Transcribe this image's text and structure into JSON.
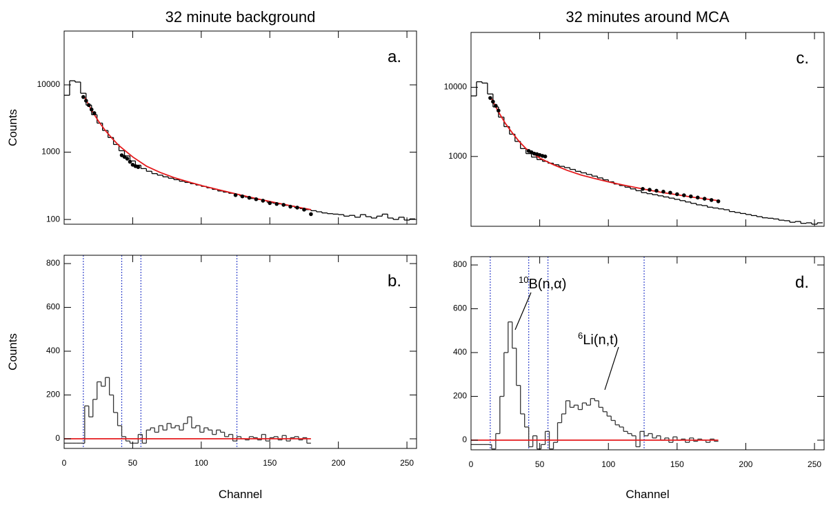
{
  "chart_data": [
    {
      "type": "histogram",
      "title": "32 minute background",
      "ylabel": "Counts",
      "panel_label": "a.",
      "log_y": true,
      "xtick_labels": false,
      "xlim": [
        0,
        257
      ],
      "ylim": [
        85,
        63000
      ],
      "xticks": [
        0,
        50,
        100,
        150,
        200,
        250
      ],
      "yticks": [
        100,
        1000,
        10000
      ],
      "color": "#000000",
      "bins": [
        0,
        4,
        8,
        12,
        16,
        20,
        24,
        28,
        32,
        36,
        40,
        44,
        48,
        52,
        56,
        60,
        64,
        68,
        72,
        76,
        80,
        84,
        88,
        92,
        96,
        100,
        104,
        108,
        112,
        116,
        120,
        124,
        128,
        132,
        136,
        140,
        144,
        148,
        152,
        156,
        160,
        164,
        168,
        172,
        176,
        180,
        184,
        188,
        192,
        196,
        200,
        204,
        208,
        212,
        216,
        220,
        224,
        228,
        232,
        236,
        240,
        244,
        248,
        252,
        256
      ],
      "values": [
        7000,
        11500,
        11000,
        7500,
        5000,
        3600,
        2700,
        2100,
        1650,
        1300,
        1050,
        880,
        740,
        640,
        570,
        520,
        480,
        455,
        430,
        410,
        390,
        370,
        355,
        340,
        325,
        310,
        295,
        280,
        265,
        255,
        245,
        235,
        225,
        215,
        205,
        198,
        190,
        180,
        175,
        170,
        162,
        158,
        150,
        145,
        140,
        135,
        130,
        125,
        122,
        120,
        118,
        112,
        115,
        108,
        118,
        110,
        105,
        112,
        120,
        105,
        100,
        108,
        98,
        102
      ],
      "fit": {
        "color": "#e41a1c",
        "x": [
          15,
          20,
          25,
          30,
          35,
          40,
          50,
          60,
          70,
          80,
          90,
          100,
          110,
          120,
          130,
          140,
          150,
          160,
          170,
          180
        ],
        "values": [
          6500,
          4200,
          2900,
          2100,
          1600,
          1250,
          850,
          620,
          500,
          420,
          365,
          320,
          285,
          255,
          228,
          205,
          185,
          168,
          153,
          140
        ]
      },
      "points": {
        "color": "#000000",
        "x": [
          14,
          16,
          18,
          20,
          22,
          42,
          44,
          46,
          48,
          50,
          52,
          54,
          125,
          130,
          135,
          140,
          145,
          150,
          155,
          160,
          165,
          170,
          175,
          180
        ],
        "values": [
          6600,
          5800,
          5000,
          4300,
          3800,
          900,
          850,
          800,
          720,
          650,
          620,
          600,
          230,
          220,
          210,
          200,
          190,
          175,
          170,
          165,
          155,
          150,
          140,
          120
        ]
      }
    },
    {
      "type": "histogram",
      "ylabel": "Counts",
      "xlabel": "Channel",
      "panel_label": "b.",
      "log_y": false,
      "xtick_labels": true,
      "xlim": [
        0,
        257
      ],
      "ylim": [
        -44,
        838
      ],
      "xticks": [
        0,
        50,
        100,
        150,
        200,
        250
      ],
      "yticks": [
        0,
        200,
        400,
        600,
        800
      ],
      "color": "#333333",
      "bins": [
        0,
        3,
        6,
        9,
        12,
        15,
        18,
        21,
        24,
        27,
        30,
        33,
        36,
        39,
        42,
        45,
        48,
        51,
        54,
        57,
        60,
        63,
        66,
        69,
        72,
        75,
        78,
        81,
        84,
        87,
        90,
        93,
        96,
        99,
        102,
        105,
        108,
        111,
        114,
        117,
        120,
        123,
        126,
        129,
        132,
        135,
        138,
        141,
        144,
        147,
        150,
        153,
        156,
        159,
        162,
        165,
        168,
        171,
        174,
        177,
        180
      ],
      "values": [
        -20,
        -20,
        -20,
        -20,
        -20,
        150,
        100,
        180,
        260,
        240,
        280,
        200,
        120,
        60,
        10,
        -10,
        -20,
        -20,
        20,
        -20,
        40,
        50,
        30,
        60,
        40,
        70,
        50,
        60,
        40,
        70,
        100,
        50,
        60,
        30,
        50,
        40,
        20,
        40,
        30,
        10,
        20,
        -10,
        10,
        0,
        -5,
        10,
        5,
        -5,
        20,
        -10,
        5,
        10,
        -5,
        15,
        -10,
        5,
        10,
        -5,
        5,
        -20
      ],
      "markers": {
        "color": "#3344cc",
        "x": [
          14,
          42,
          56,
          126
        ]
      },
      "baseline": {
        "color": "#e41a1c",
        "value": 0,
        "x": [
          0,
          180
        ]
      }
    },
    {
      "type": "histogram",
      "title": "32 minutes around MCA",
      "panel_label": "c.",
      "log_y": true,
      "xtick_labels": false,
      "xlim": [
        0,
        257
      ],
      "ylim": [
        98,
        62000
      ],
      "xticks": [
        0,
        50,
        100,
        150,
        200,
        250
      ],
      "yticks": [
        1000,
        10000
      ],
      "color": "#000000",
      "bins": [
        0,
        4,
        8,
        12,
        16,
        20,
        24,
        28,
        32,
        36,
        40,
        44,
        48,
        52,
        56,
        60,
        64,
        68,
        72,
        76,
        80,
        84,
        88,
        92,
        96,
        100,
        104,
        108,
        112,
        116,
        120,
        124,
        128,
        132,
        136,
        140,
        144,
        148,
        152,
        156,
        160,
        164,
        168,
        172,
        176,
        180,
        184,
        188,
        192,
        196,
        200,
        204,
        208,
        212,
        216,
        220,
        224,
        228,
        232,
        236,
        240,
        244,
        248,
        252,
        256
      ],
      "values": [
        7500,
        12000,
        11500,
        8000,
        5200,
        3700,
        2700,
        2100,
        1650,
        1300,
        1100,
        980,
        900,
        850,
        800,
        760,
        720,
        690,
        650,
        610,
        580,
        550,
        520,
        490,
        460,
        430,
        400,
        380,
        360,
        340,
        320,
        300,
        290,
        280,
        270,
        260,
        250,
        240,
        230,
        220,
        210,
        200,
        195,
        185,
        180,
        175,
        170,
        160,
        155,
        150,
        145,
        140,
        135,
        130,
        128,
        125,
        120,
        118,
        112,
        115,
        108,
        110,
        105,
        110
      ],
      "fit": {
        "color": "#e41a1c",
        "x": [
          15,
          20,
          25,
          30,
          35,
          40,
          50,
          60,
          70,
          80,
          90,
          100,
          110,
          120,
          130,
          140,
          150,
          160,
          170,
          180
        ],
        "values": [
          6800,
          4400,
          3000,
          2200,
          1650,
          1300,
          950,
          760,
          630,
          540,
          480,
          430,
          390,
          355,
          325,
          300,
          280,
          260,
          245,
          230
        ]
      },
      "points": {
        "color": "#000000",
        "x": [
          14,
          16,
          18,
          20,
          42,
          44,
          46,
          48,
          50,
          52,
          54,
          125,
          130,
          135,
          140,
          145,
          150,
          155,
          160,
          165,
          170,
          175,
          180
        ],
        "values": [
          7000,
          6200,
          5400,
          4600,
          1200,
          1150,
          1100,
          1080,
          1050,
          1020,
          1000,
          340,
          330,
          320,
          310,
          300,
          285,
          275,
          265,
          255,
          245,
          235,
          225
        ]
      }
    },
    {
      "type": "histogram",
      "xlabel": "Channel",
      "panel_label": "d.",
      "log_y": false,
      "xtick_labels": true,
      "xlim": [
        0,
        257
      ],
      "ylim": [
        -44,
        838
      ],
      "xticks": [
        0,
        50,
        100,
        150,
        200,
        250
      ],
      "yticks": [
        0,
        200,
        400,
        600,
        800
      ],
      "color": "#333333",
      "bins": [
        0,
        3,
        6,
        9,
        12,
        15,
        18,
        21,
        24,
        27,
        30,
        33,
        36,
        39,
        42,
        45,
        48,
        51,
        54,
        57,
        60,
        63,
        66,
        69,
        72,
        75,
        78,
        81,
        84,
        87,
        90,
        93,
        96,
        99,
        102,
        105,
        108,
        111,
        114,
        117,
        120,
        123,
        126,
        129,
        132,
        135,
        138,
        141,
        144,
        147,
        150,
        153,
        156,
        159,
        162,
        165,
        168,
        171,
        174,
        177,
        180
      ],
      "values": [
        -20,
        -20,
        -20,
        -20,
        -20,
        -40,
        30,
        200,
        400,
        540,
        420,
        250,
        120,
        60,
        -30,
        20,
        -40,
        -20,
        40,
        -40,
        -10,
        80,
        120,
        180,
        150,
        160,
        140,
        170,
        160,
        190,
        180,
        150,
        130,
        110,
        90,
        70,
        60,
        40,
        30,
        20,
        -30,
        40,
        20,
        30,
        10,
        20,
        0,
        10,
        -10,
        15,
        0,
        5,
        -10,
        10,
        -5,
        5,
        0,
        -10,
        5,
        -5
      ],
      "markers": {
        "color": "#3344cc",
        "x": [
          14,
          42,
          56,
          126
        ]
      },
      "baseline": {
        "color": "#e41a1c",
        "value": 0,
        "x": [
          0,
          180
        ]
      },
      "annotations": [
        {
          "sup": "10",
          "text": "B(n,α)"
        },
        {
          "sup": "6",
          "text": "Li(n,t)"
        }
      ]
    }
  ]
}
